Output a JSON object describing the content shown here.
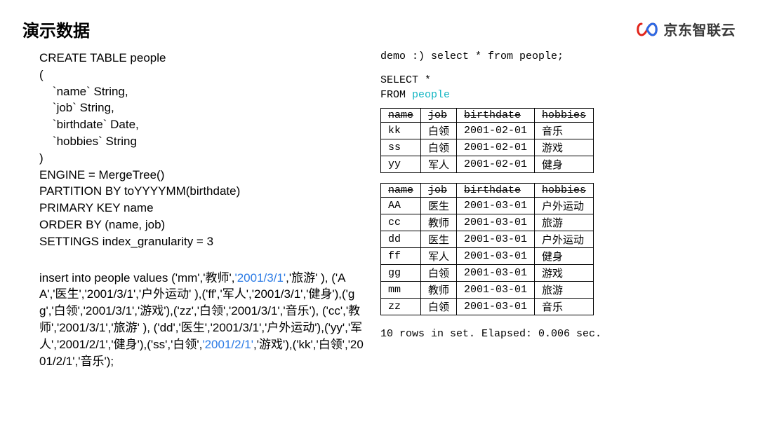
{
  "page": {
    "title": "演示数据",
    "logo_text": "京东智联云",
    "logo_colors": {
      "left": "#e1251b",
      "right": "#2c6ae5"
    }
  },
  "left_sql": {
    "create_table_lines": [
      "CREATE TABLE people",
      "(",
      "    `name` String,",
      "    `job` String,",
      "    `birthdate` Date,",
      "    `hobbies` String",
      ")",
      "ENGINE = MergeTree()",
      "PARTITION BY toYYYYMM(birthdate)",
      "PRIMARY KEY name",
      "ORDER BY (name, job)",
      "SETTINGS index_granularity = 3"
    ],
    "insert_prefix": "insert into people values ('mm','教师',",
    "insert_hl1": "'2001/3/1'",
    "insert_mid": ",'旅游' ), ('AA','医生','2001/3/1','户外运动'  ),('ff','军人','2001/3/1','健身'),('gg','白领','2001/3/1','游戏'),('zz','白领','2001/3/1','音乐'), ('cc','教师','2001/3/1','旅游' ), ('dd','医生','2001/3/1','户外运动'),('yy','军人','2001/2/1','健身'),('ss','白领',",
    "insert_hl2": "'2001/2/1'",
    "insert_suffix": ",'游戏'),('kk','白领','2001/2/1','音乐');"
  },
  "right": {
    "prompt_line": "demo :) select * from people;",
    "select_kw": "SELECT ",
    "star": "*",
    "from_kw": "FROM ",
    "table_ref": "people",
    "table1": {
      "columns": [
        "name",
        "job",
        "birthdate",
        "hobbies"
      ],
      "rows": [
        [
          "kk",
          "白领",
          "2001-02-01",
          "音乐"
        ],
        [
          "ss",
          "白领",
          "2001-02-01",
          "游戏"
        ],
        [
          "yy",
          "军人",
          "2001-02-01",
          "健身"
        ]
      ]
    },
    "table2": {
      "columns": [
        "name",
        "job",
        "birthdate",
        "hobbies"
      ],
      "rows": [
        [
          "AA",
          "医生",
          "2001-03-01",
          "户外运动"
        ],
        [
          "cc",
          "教师",
          "2001-03-01",
          "旅游"
        ],
        [
          "dd",
          "医生",
          "2001-03-01",
          "户外运动"
        ],
        [
          "ff",
          "军人",
          "2001-03-01",
          "健身"
        ],
        [
          "gg",
          "白领",
          "2001-03-01",
          "游戏"
        ],
        [
          "mm",
          "教师",
          "2001-03-01",
          "旅游"
        ],
        [
          "zz",
          "白领",
          "2001-03-01",
          "音乐"
        ]
      ]
    },
    "footer": "10 rows in set. Elapsed: 0.006 sec."
  }
}
